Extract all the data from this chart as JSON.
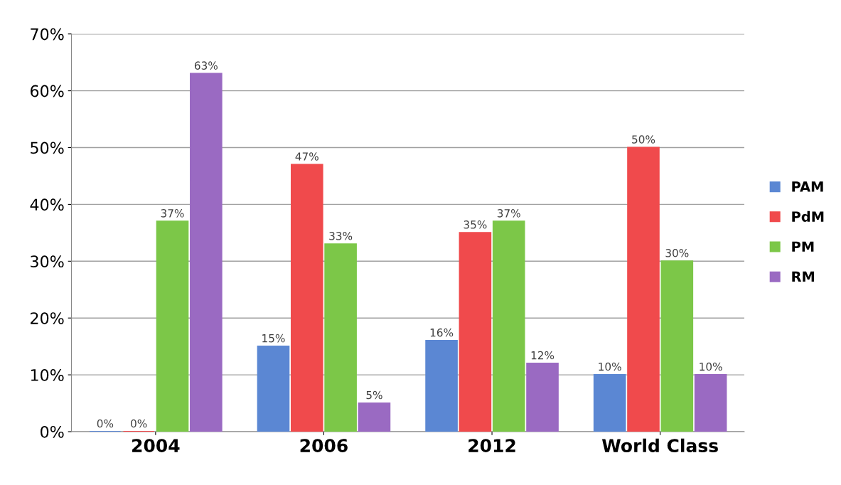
{
  "chart_data": {
    "type": "bar",
    "categories": [
      "2004",
      "2006",
      "2012",
      "World Class"
    ],
    "series": [
      {
        "name": "PAM",
        "color": "#5b87d3",
        "values": [
          0,
          15,
          16,
          10
        ],
        "value_labels": [
          "0%",
          "15%",
          "16%",
          "10%"
        ]
      },
      {
        "name": "PdM",
        "color": "#f04a4c",
        "values": [
          0,
          47,
          35,
          50
        ],
        "value_labels": [
          "0%",
          "47%",
          "35%",
          "50%"
        ]
      },
      {
        "name": "PM",
        "color": "#7cc748",
        "values": [
          37,
          33,
          37,
          30
        ],
        "value_labels": [
          "37%",
          "33%",
          "37%",
          "30%"
        ]
      },
      {
        "name": "RM",
        "color": "#9a6ac2",
        "values": [
          63,
          5,
          12,
          10
        ],
        "value_labels": [
          "63%",
          "5%",
          "12%",
          "10%"
        ]
      }
    ],
    "ylim": [
      0,
      70
    ],
    "yticks": [
      {
        "value": 0,
        "label": "0%"
      },
      {
        "value": 10,
        "label": "10%"
      },
      {
        "value": 20,
        "label": "20%"
      },
      {
        "value": 30,
        "label": "30%"
      },
      {
        "value": 40,
        "label": "40%"
      },
      {
        "value": 50,
        "label": "50%"
      },
      {
        "value": 60,
        "label": "60%"
      },
      {
        "value": 70,
        "label": "70%"
      }
    ],
    "grid": "y",
    "legend": "right"
  }
}
